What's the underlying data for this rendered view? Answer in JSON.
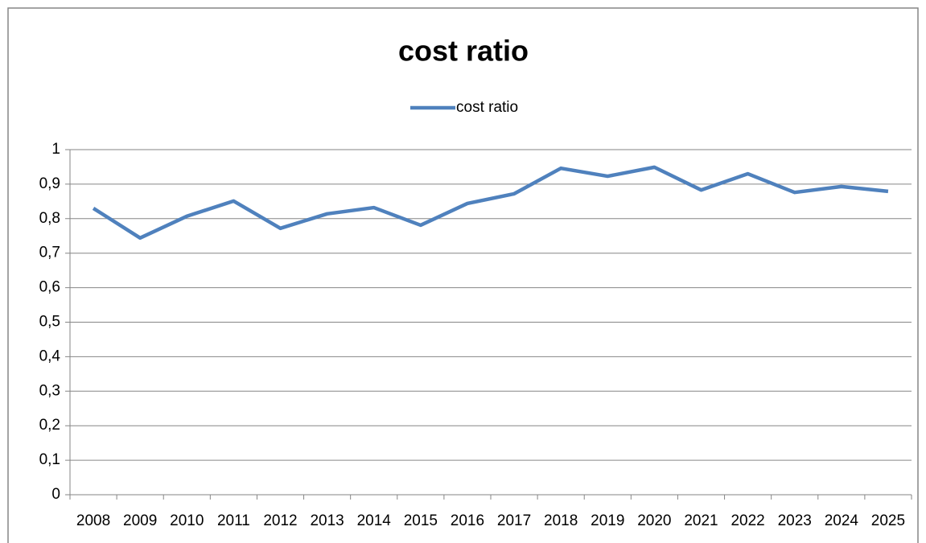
{
  "chart_data": {
    "type": "line",
    "title": "cost ratio",
    "categories": [
      "2008",
      "2009",
      "2010",
      "2011",
      "2012",
      "2013",
      "2014",
      "2015",
      "2016",
      "2017",
      "2018",
      "2019",
      "2020",
      "2021",
      "2022",
      "2023",
      "2024",
      "2025"
    ],
    "series": [
      {
        "name": "cost ratio",
        "color": "#4f81bd",
        "values": [
          0.83,
          0.744,
          0.807,
          0.851,
          0.772,
          0.814,
          0.832,
          0.781,
          0.844,
          0.872,
          0.946,
          0.923,
          0.949,
          0.883,
          0.93,
          0.876,
          0.893,
          0.879
        ]
      }
    ],
    "ylim": [
      0,
      1
    ],
    "yticks": [
      0,
      {
        "value": 0.1,
        "label": "0,1"
      },
      {
        "value": 0.2,
        "label": "0,2"
      },
      {
        "value": 0.3,
        "label": "0,3"
      },
      {
        "value": 0.4,
        "label": "0,4"
      },
      {
        "value": 0.5,
        "label": "0,5"
      },
      {
        "value": 0.6,
        "label": "0,6"
      },
      {
        "value": 0.7,
        "label": "0,7"
      },
      {
        "value": 0.8,
        "label": "0,8"
      },
      {
        "value": 0.9,
        "label": "0,9"
      },
      1
    ],
    "grid": true,
    "legend": "top"
  }
}
